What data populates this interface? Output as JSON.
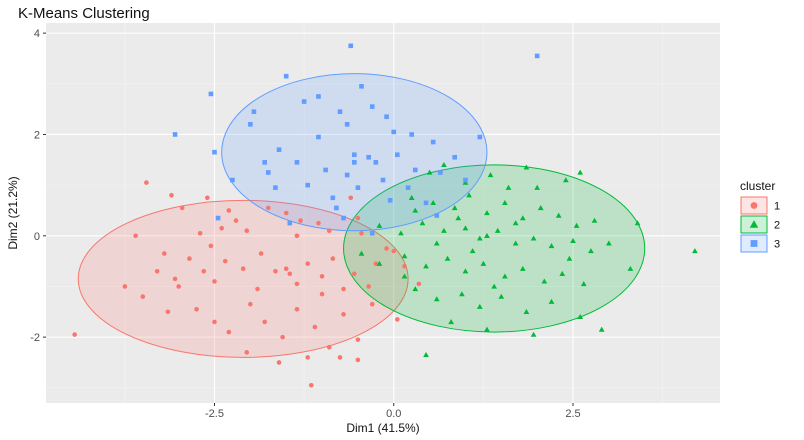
{
  "chart_data": {
    "type": "scatter",
    "title": "K-Means Clustering",
    "xlabel": "Dim1 (41.5%)",
    "ylabel": "Dim2 (21.2%)",
    "xlim": [
      -4.85,
      4.55
    ],
    "ylim": [
      -3.3,
      4.2
    ],
    "x_ticks": [
      -2.5,
      0.0,
      2.5
    ],
    "x_tick_labels": [
      "-2.5",
      "0.0",
      "2.5"
    ],
    "y_ticks": [
      -2,
      0,
      2,
      4
    ],
    "y_tick_labels": [
      "-2",
      "0",
      "2",
      "4"
    ],
    "grid": true,
    "legend": {
      "title": "cluster",
      "position": "right"
    },
    "series": [
      {
        "name": "1",
        "shape": "circle",
        "color": "#F8766D",
        "ellipse": {
          "cx": -2.1,
          "cy": -0.85,
          "rx": 2.3,
          "ry": 1.55
        },
        "points": [
          [
            -3.45,
            1.05
          ],
          [
            -3.1,
            0.8
          ],
          [
            -2.95,
            0.55
          ],
          [
            -2.6,
            0.75
          ],
          [
            -2.3,
            0.5
          ],
          [
            -2.2,
            0.3
          ],
          [
            -2.4,
            0.15
          ],
          [
            -2.05,
            0.1
          ],
          [
            -1.75,
            0.55
          ],
          [
            -1.5,
            0.45
          ],
          [
            -1.3,
            0.3
          ],
          [
            -1.05,
            0.25
          ],
          [
            -0.9,
            0.1
          ],
          [
            -0.6,
            0.75
          ],
          [
            -0.5,
            0.35
          ],
          [
            -3.6,
            0.0
          ],
          [
            -3.2,
            -0.35
          ],
          [
            -3.3,
            -0.7
          ],
          [
            -3.05,
            -0.85
          ],
          [
            -2.85,
            -0.45
          ],
          [
            -2.65,
            -0.7
          ],
          [
            -2.5,
            -0.9
          ],
          [
            -2.35,
            -0.5
          ],
          [
            -2.1,
            -0.65
          ],
          [
            -1.85,
            -0.35
          ],
          [
            -1.65,
            -0.7
          ],
          [
            -1.5,
            -0.65
          ],
          [
            -1.45,
            -0.75
          ],
          [
            -1.35,
            -0.95
          ],
          [
            -1.2,
            -0.55
          ],
          [
            -1.0,
            -0.8
          ],
          [
            -0.85,
            -0.45
          ],
          [
            -0.7,
            -1.05
          ],
          [
            -0.55,
            -0.75
          ],
          [
            -0.35,
            -1.0
          ],
          [
            -0.25,
            -0.55
          ],
          [
            -0.1,
            -0.25
          ],
          [
            0.15,
            -0.6
          ],
          [
            0.35,
            -0.95
          ],
          [
            -3.75,
            -1.0
          ],
          [
            -3.5,
            -1.2
          ],
          [
            -3.15,
            -1.5
          ],
          [
            -2.75,
            -1.45
          ],
          [
            -2.5,
            -1.7
          ],
          [
            -2.3,
            -1.9
          ],
          [
            -2.0,
            -1.35
          ],
          [
            -1.8,
            -1.7
          ],
          [
            -1.55,
            -2.0
          ],
          [
            -1.35,
            -1.45
          ],
          [
            -1.1,
            -1.8
          ],
          [
            -0.9,
            -2.2
          ],
          [
            -0.7,
            -1.55
          ],
          [
            -0.5,
            -2.05
          ],
          [
            -0.3,
            -1.35
          ],
          [
            0.05,
            -1.65
          ],
          [
            -2.05,
            -2.3
          ],
          [
            -1.6,
            -2.5
          ],
          [
            -1.2,
            -2.4
          ],
          [
            -0.75,
            -2.4
          ],
          [
            -0.5,
            -2.45
          ],
          [
            -1.15,
            -2.95
          ],
          [
            -4.45,
            -1.95
          ],
          [
            -2.7,
            0.05
          ],
          [
            -1.9,
            -1.05
          ],
          [
            -0.45,
            0.05
          ],
          [
            0.0,
            -0.3
          ],
          [
            -3.0,
            -1.0
          ],
          [
            -1.0,
            -1.15
          ],
          [
            -2.55,
            -0.2
          ],
          [
            -1.35,
            0.0
          ]
        ]
      },
      {
        "name": "2",
        "shape": "triangle",
        "color": "#00BA38",
        "ellipse": {
          "cx": 1.4,
          "cy": -0.25,
          "rx": 2.1,
          "ry": 1.65
        },
        "points": [
          [
            0.5,
            1.25
          ],
          [
            0.7,
            1.4
          ],
          [
            1.0,
            1.05
          ],
          [
            1.35,
            1.2
          ],
          [
            1.6,
            0.95
          ],
          [
            1.85,
            1.35
          ],
          [
            2.4,
            1.1
          ],
          [
            2.6,
            1.25
          ],
          [
            0.25,
            0.75
          ],
          [
            0.55,
            0.65
          ],
          [
            0.85,
            0.55
          ],
          [
            1.05,
            0.8
          ],
          [
            1.3,
            0.45
          ],
          [
            1.55,
            0.65
          ],
          [
            1.8,
            0.35
          ],
          [
            2.05,
            0.55
          ],
          [
            2.3,
            0.4
          ],
          [
            2.55,
            0.2
          ],
          [
            2.8,
            0.3
          ],
          [
            -0.2,
            0.2
          ],
          [
            0.1,
            0.05
          ],
          [
            0.4,
            0.25
          ],
          [
            0.7,
            0.1
          ],
          [
            1.0,
            0.15
          ],
          [
            1.2,
            -0.05
          ],
          [
            1.45,
            0.1
          ],
          [
            1.7,
            -0.15
          ],
          [
            1.95,
            -0.05
          ],
          [
            2.2,
            -0.2
          ],
          [
            2.5,
            -0.1
          ],
          [
            2.75,
            -0.3
          ],
          [
            3.0,
            -0.15
          ],
          [
            -0.45,
            -0.35
          ],
          [
            -0.2,
            -0.55
          ],
          [
            0.15,
            -0.4
          ],
          [
            0.45,
            -0.6
          ],
          [
            0.75,
            -0.45
          ],
          [
            1.0,
            -0.7
          ],
          [
            1.25,
            -0.55
          ],
          [
            1.55,
            -0.8
          ],
          [
            1.8,
            -0.65
          ],
          [
            2.1,
            -0.9
          ],
          [
            2.35,
            -0.75
          ],
          [
            2.65,
            -0.95
          ],
          [
            0.3,
            -1.05
          ],
          [
            0.6,
            -1.25
          ],
          [
            0.95,
            -1.15
          ],
          [
            1.2,
            -1.4
          ],
          [
            1.5,
            -1.2
          ],
          [
            1.85,
            -1.5
          ],
          [
            2.2,
            -1.3
          ],
          [
            2.6,
            -1.6
          ],
          [
            0.8,
            -1.7
          ],
          [
            1.3,
            -1.85
          ],
          [
            1.95,
            -1.95
          ],
          [
            2.9,
            -1.85
          ],
          [
            0.45,
            -2.35
          ],
          [
            3.3,
            -0.65
          ],
          [
            4.2,
            -0.3
          ],
          [
            1.3,
            0.0
          ],
          [
            0.9,
            0.35
          ],
          [
            2.0,
            0.95
          ],
          [
            1.1,
            -0.3
          ],
          [
            0.3,
            0.5
          ],
          [
            1.7,
            0.25
          ],
          [
            0.6,
            -0.15
          ],
          [
            2.45,
            -0.45
          ],
          [
            1.4,
            -1.0
          ],
          [
            0.15,
            -0.8
          ],
          [
            3.4,
            0.25
          ]
        ]
      },
      {
        "name": "3",
        "shape": "square",
        "color": "#619CFF",
        "ellipse": {
          "cx": -0.55,
          "cy": 1.65,
          "rx": 1.85,
          "ry": 1.55
        },
        "points": [
          [
            -0.6,
            3.75
          ],
          [
            2.0,
            3.55
          ],
          [
            -1.5,
            3.15
          ],
          [
            -2.55,
            2.8
          ],
          [
            -0.45,
            2.95
          ],
          [
            -1.25,
            2.65
          ],
          [
            -0.75,
            2.45
          ],
          [
            -0.3,
            2.55
          ],
          [
            -1.95,
            2.45
          ],
          [
            -2.0,
            2.2
          ],
          [
            -0.65,
            2.2
          ],
          [
            -0.1,
            2.35
          ],
          [
            0.25,
            2.0
          ],
          [
            -3.05,
            2.0
          ],
          [
            -1.05,
            1.95
          ],
          [
            -0.55,
            1.6
          ],
          [
            -0.35,
            1.55
          ],
          [
            0.05,
            1.6
          ],
          [
            0.55,
            1.85
          ],
          [
            0.85,
            1.55
          ],
          [
            -2.5,
            1.65
          ],
          [
            -1.8,
            1.45
          ],
          [
            -1.35,
            1.45
          ],
          [
            -0.95,
            1.3
          ],
          [
            -0.65,
            1.2
          ],
          [
            -0.25,
            1.45
          ],
          [
            0.3,
            1.3
          ],
          [
            0.65,
            1.25
          ],
          [
            1.2,
            1.95
          ],
          [
            -2.25,
            1.1
          ],
          [
            -1.65,
            0.95
          ],
          [
            -1.2,
            1.0
          ],
          [
            -0.85,
            0.75
          ],
          [
            -0.5,
            0.95
          ],
          [
            -0.05,
            0.7
          ],
          [
            0.45,
            0.65
          ],
          [
            -2.45,
            0.35
          ],
          [
            -1.45,
            0.25
          ],
          [
            -0.7,
            0.35
          ],
          [
            -0.3,
            0.05
          ],
          [
            0.2,
            0.95
          ],
          [
            -1.05,
            2.75
          ],
          [
            -0.55,
            1.45
          ],
          [
            1.0,
            1.1
          ],
          [
            -1.75,
            1.25
          ],
          [
            0.0,
            2.05
          ],
          [
            -0.8,
            0.55
          ],
          [
            -1.6,
            1.7
          ],
          [
            0.6,
            0.4
          ],
          [
            -0.15,
            1.1
          ]
        ]
      }
    ]
  }
}
